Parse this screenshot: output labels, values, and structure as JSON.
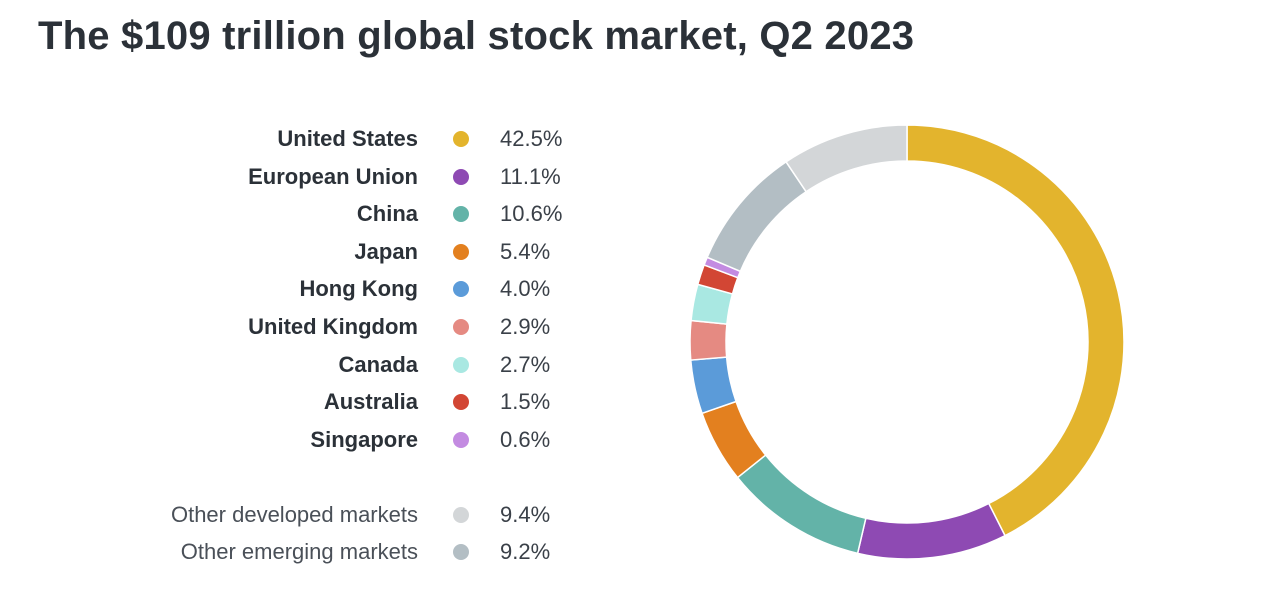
{
  "title": "The $109 trillion global stock market, Q2 2023",
  "chart_data": {
    "type": "pie",
    "variant": "donut",
    "title": "The $109 trillion global stock market, Q2 2023",
    "legend_placement": "left",
    "series": [
      {
        "name": "United States",
        "value": 42.5,
        "label": "42.5%",
        "color": "#E3B42D",
        "group": "main"
      },
      {
        "name": "European Union",
        "value": 11.1,
        "label": "11.1%",
        "color": "#8E4AB3",
        "group": "main"
      },
      {
        "name": "China",
        "value": 10.6,
        "label": "10.6%",
        "color": "#63B3A8",
        "group": "main"
      },
      {
        "name": "Japan",
        "value": 5.4,
        "label": "5.4%",
        "color": "#E3801F",
        "group": "main"
      },
      {
        "name": "Hong Kong",
        "value": 4.0,
        "label": "4.0%",
        "color": "#5B9BD9",
        "group": "main"
      },
      {
        "name": "United Kingdom",
        "value": 2.9,
        "label": "2.9%",
        "color": "#E58A82",
        "group": "main"
      },
      {
        "name": "Canada",
        "value": 2.7,
        "label": "2.7%",
        "color": "#A9E8E2",
        "group": "main"
      },
      {
        "name": "Australia",
        "value": 1.5,
        "label": "1.5%",
        "color": "#D24634",
        "group": "main"
      },
      {
        "name": "Singapore",
        "value": 0.6,
        "label": "0.6%",
        "color": "#C38BE1",
        "group": "main"
      },
      {
        "name": "Other developed markets",
        "value": 9.4,
        "label": "9.4%",
        "color": "#D3D6D8",
        "group": "other"
      },
      {
        "name": "Other emerging markets",
        "value": 9.2,
        "label": "9.2%",
        "color": "#B3BEC4",
        "group": "other"
      }
    ]
  }
}
